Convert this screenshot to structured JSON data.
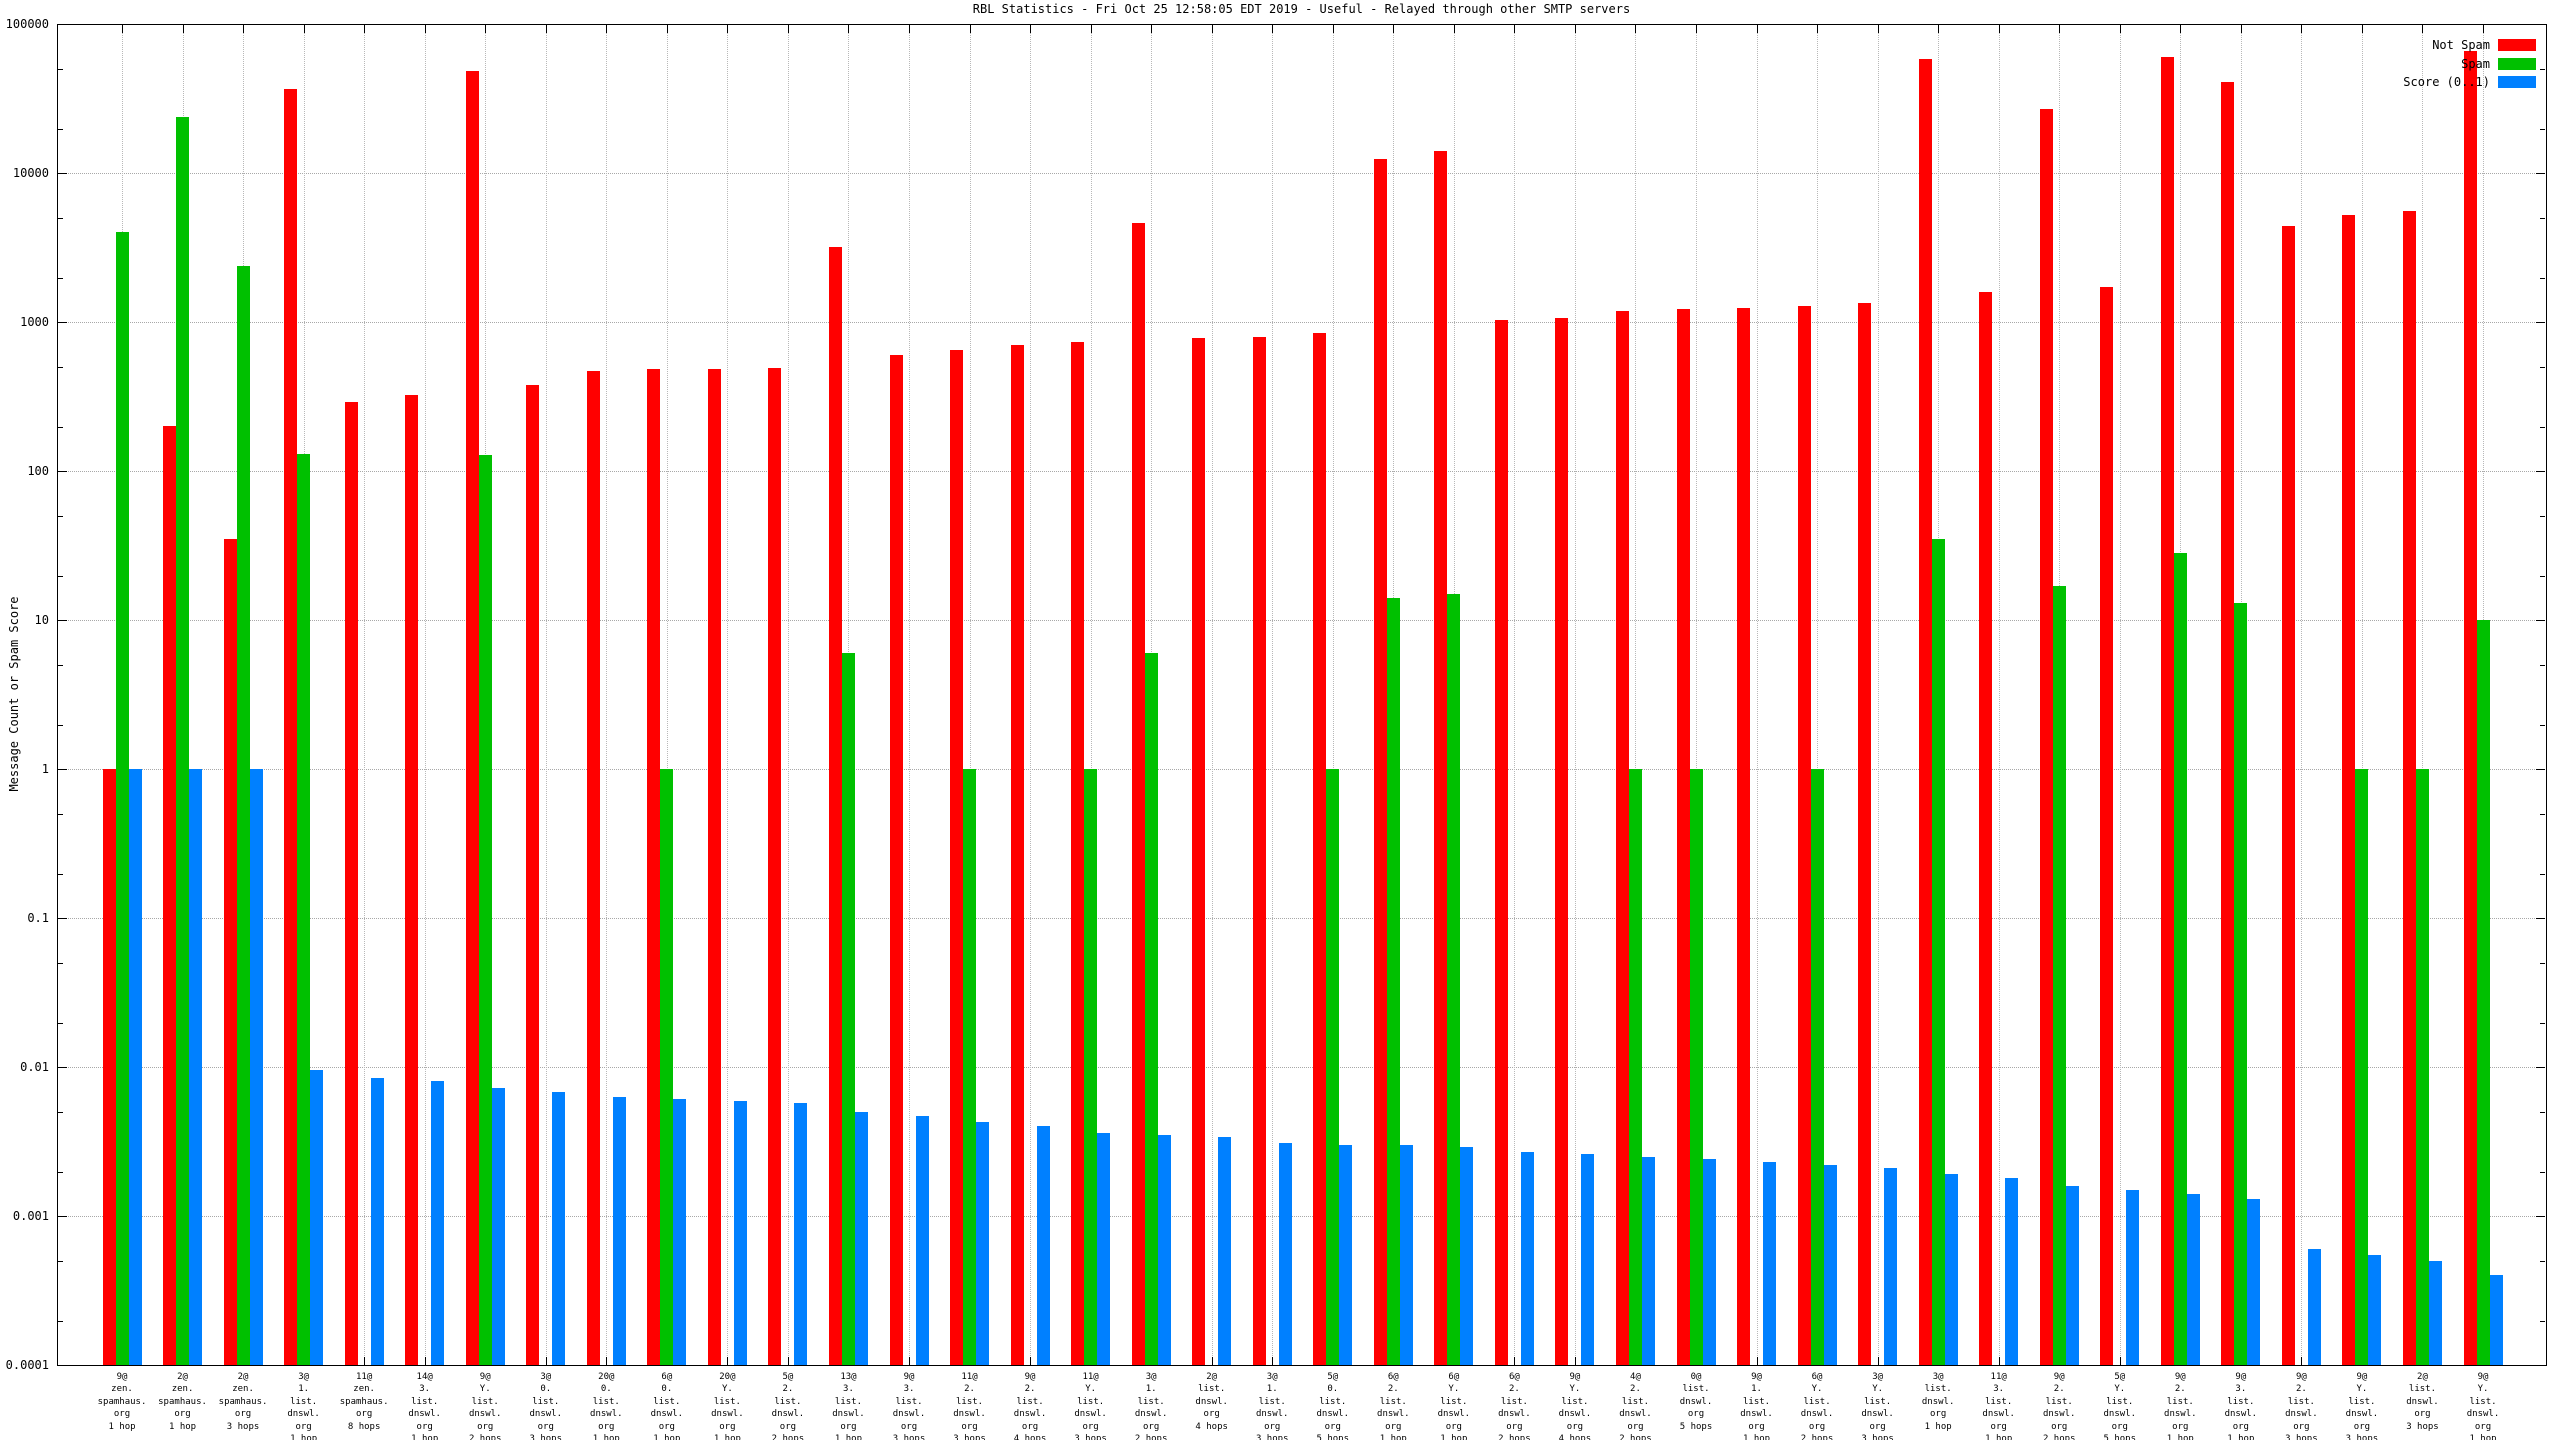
{
  "title": "RBL Statistics - Fri Oct 25 12:58:05 EDT 2019 - Useful - Relayed through other SMTP servers",
  "y_axis": {
    "label": "Message Count or Spam Score",
    "tick_labels": [
      "100000",
      "10000",
      "1000",
      "100",
      "10",
      "1",
      "0.1",
      "0.01",
      "0.001",
      "0.0001"
    ]
  },
  "legend": [
    {
      "label": "Not Spam",
      "color": "#ff0000"
    },
    {
      "label": "Spam",
      "color": "#00c000"
    },
    {
      "label": "Score (0..1)",
      "color": "#0080ff"
    }
  ],
  "colors": {
    "not_spam": "#ff0000",
    "spam": "#00c000",
    "score": "#0080ff",
    "grid": "#a8a8a8",
    "axis": "#000000",
    "background": "#ffffff"
  },
  "chart_data": {
    "type": "bar",
    "y_scale": "log",
    "ylim": [
      0.0001,
      100000
    ],
    "grid": true,
    "legend_position": "top-right",
    "title": "RBL Statistics - Fri Oct 25 12:58:05 EDT 2019 - Useful - Relayed through other SMTP servers",
    "ylabel": "Message Count or Spam Score",
    "categories": [
      {
        "lines": [
          "9@",
          "zen.",
          "spamhaus.",
          "org",
          "1 hop"
        ]
      },
      {
        "lines": [
          "2@",
          "zen.",
          "spamhaus.",
          "org",
          "1 hop"
        ]
      },
      {
        "lines": [
          "2@",
          "zen.",
          "spamhaus.",
          "org",
          "3 hops"
        ]
      },
      {
        "lines": [
          "3@",
          "1.",
          "list.",
          "dnswl.",
          "org",
          "1 hop"
        ]
      },
      {
        "lines": [
          "11@",
          "zen.",
          "spamhaus.",
          "org",
          "8 hops"
        ]
      },
      {
        "lines": [
          "14@",
          "3.",
          "list.",
          "dnswl.",
          "org",
          "1 hop"
        ]
      },
      {
        "lines": [
          "9@",
          "Y.",
          "list.",
          "dnswl.",
          "org",
          "2 hops"
        ]
      },
      {
        "lines": [
          "3@",
          "0.",
          "list.",
          "dnswl.",
          "org",
          "3 hops"
        ]
      },
      {
        "lines": [
          "20@",
          "0.",
          "list.",
          "dnswl.",
          "org",
          "1 hop"
        ]
      },
      {
        "lines": [
          "6@",
          "0.",
          "list.",
          "dnswl.",
          "org",
          "1 hop"
        ]
      },
      {
        "lines": [
          "20@",
          "Y.",
          "list.",
          "dnswl.",
          "org",
          "1 hop"
        ]
      },
      {
        "lines": [
          "5@",
          "2.",
          "list.",
          "dnswl.",
          "org",
          "2 hops"
        ]
      },
      {
        "lines": [
          "13@",
          "3.",
          "list.",
          "dnswl.",
          "org",
          "1 hop"
        ]
      },
      {
        "lines": [
          "9@",
          "3.",
          "list.",
          "dnswl.",
          "org",
          "3 hops"
        ]
      },
      {
        "lines": [
          "11@",
          "2.",
          "list.",
          "dnswl.",
          "org",
          "3 hops"
        ]
      },
      {
        "lines": [
          "9@",
          "2.",
          "list.",
          "dnswl.",
          "org",
          "4 hops"
        ]
      },
      {
        "lines": [
          "11@",
          "Y.",
          "list.",
          "dnswl.",
          "org",
          "3 hops"
        ]
      },
      {
        "lines": [
          "3@",
          "1.",
          "list.",
          "dnswl.",
          "org",
          "2 hops"
        ]
      },
      {
        "lines": [
          "2@",
          "list.",
          "dnswl.",
          "org",
          "4 hops"
        ]
      },
      {
        "lines": [
          "3@",
          "1.",
          "list.",
          "dnswl.",
          "org",
          "3 hops"
        ]
      },
      {
        "lines": [
          "5@",
          "0.",
          "list.",
          "dnswl.",
          "org",
          "5 hops"
        ]
      },
      {
        "lines": [
          "6@",
          "2.",
          "list.",
          "dnswl.",
          "org",
          "1 hop"
        ]
      },
      {
        "lines": [
          "6@",
          "Y.",
          "list.",
          "dnswl.",
          "org",
          "1 hop"
        ]
      },
      {
        "lines": [
          "6@",
          "2.",
          "list.",
          "dnswl.",
          "org",
          "2 hops"
        ]
      },
      {
        "lines": [
          "9@",
          "Y.",
          "list.",
          "dnswl.",
          "org",
          "4 hops"
        ]
      },
      {
        "lines": [
          "4@",
          "2.",
          "list.",
          "dnswl.",
          "org",
          "2 hops"
        ]
      },
      {
        "lines": [
          "0@",
          "list.",
          "dnswl.",
          "org",
          "5 hops"
        ]
      },
      {
        "lines": [
          "9@",
          "1.",
          "list.",
          "dnswl.",
          "org",
          "1 hop"
        ]
      },
      {
        "lines": [
          "6@",
          "Y.",
          "list.",
          "dnswl.",
          "org",
          "2 hops"
        ]
      },
      {
        "lines": [
          "3@",
          "Y.",
          "list.",
          "dnswl.",
          "org",
          "3 hops"
        ]
      },
      {
        "lines": [
          "3@",
          "list.",
          "dnswl.",
          "org",
          "1 hop"
        ]
      },
      {
        "lines": [
          "11@",
          "3.",
          "list.",
          "dnswl.",
          "org",
          "1 hop"
        ]
      },
      {
        "lines": [
          "9@",
          "2.",
          "list.",
          "dnswl.",
          "org",
          "2 hops"
        ]
      },
      {
        "lines": [
          "5@",
          "Y.",
          "list.",
          "dnswl.",
          "org",
          "5 hops"
        ]
      },
      {
        "lines": [
          "9@",
          "2.",
          "list.",
          "dnswl.",
          "org",
          "1 hop"
        ]
      },
      {
        "lines": [
          "9@",
          "3.",
          "list.",
          "dnswl.",
          "org",
          "1 hop"
        ]
      },
      {
        "lines": [
          "9@",
          "2.",
          "list.",
          "dnswl.",
          "org",
          "3 hops"
        ]
      },
      {
        "lines": [
          "9@",
          "Y.",
          "list.",
          "dnswl.",
          "org",
          "3 hops"
        ]
      },
      {
        "lines": [
          "2@",
          "list.",
          "dnswl.",
          "org",
          "3 hops"
        ]
      },
      {
        "lines": [
          "9@",
          "Y.",
          "list.",
          "dnswl.",
          "org",
          "1 hop"
        ]
      }
    ],
    "series": [
      {
        "name": "Not Spam",
        "color": "#ff0000",
        "values": [
          1,
          200,
          35,
          36600,
          290,
          324,
          48400,
          378,
          470,
          480,
          480,
          490,
          3180,
          600,
          650,
          700,
          735,
          4630,
          780,
          790,
          845,
          12400,
          14100,
          1030,
          1065,
          1185,
          1220,
          1240,
          1280,
          1350,
          58000,
          1600,
          27000,
          1720,
          60000,
          41000,
          4400,
          5200,
          5600,
          66000
        ]
      },
      {
        "name": "Spam",
        "color": "#00c000",
        "values": [
          4000,
          23700,
          2380,
          130,
          0,
          0,
          128,
          0,
          0,
          1,
          0,
          0,
          6,
          0,
          1,
          0,
          1,
          6,
          0,
          0,
          1,
          14,
          15,
          0,
          0,
          1,
          1,
          0,
          1,
          0,
          35,
          0,
          17,
          0,
          28,
          13,
          0,
          1,
          1,
          10
        ]
      },
      {
        "name": "Score (0..1)",
        "color": "#0080ff",
        "values": [
          1,
          1,
          1,
          0.0095,
          0.0085,
          0.008,
          0.0072,
          0.0068,
          0.0063,
          0.0061,
          0.0059,
          0.0057,
          0.005,
          0.0047,
          0.0043,
          0.004,
          0.0036,
          0.0035,
          0.0034,
          0.0031,
          0.003,
          0.003,
          0.0029,
          0.0027,
          0.0026,
          0.0025,
          0.0024,
          0.0023,
          0.0022,
          0.0021,
          0.0019,
          0.0018,
          0.0016,
          0.0015,
          0.0014,
          0.0013,
          0.0006,
          0.00055,
          0.0005,
          0.0004
        ]
      }
    ]
  }
}
